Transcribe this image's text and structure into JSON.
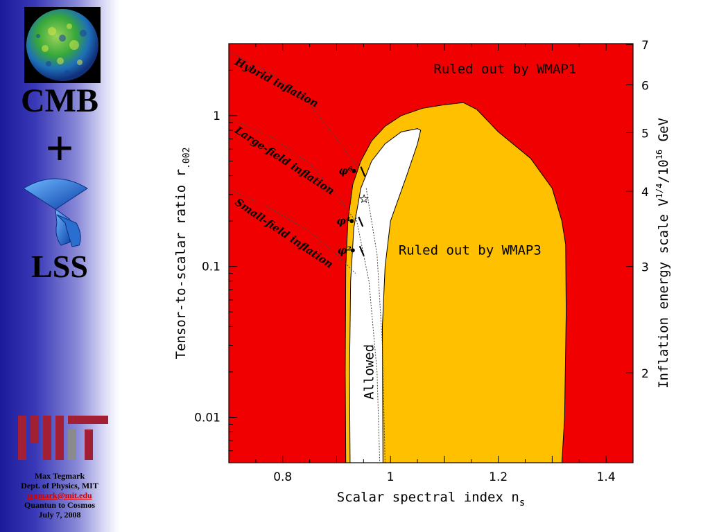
{
  "sidebar": {
    "title_top": "CMB",
    "plus": "+",
    "title_bottom": "LSS",
    "author": {
      "name": "Max Tegmark",
      "dept": "Dept. of Physics, MIT",
      "email": "tegmark@mit.edu",
      "event": "Quantun to Cosmos",
      "date": "July 7, 2008"
    },
    "colors": {
      "accent_dark": "#1a1a9a",
      "mit_red": "#a31f34",
      "mit_gray": "#8a8b8c"
    }
  },
  "chart_data": {
    "type": "area",
    "xlabel": "Scalar spectral index n",
    "xlabel_sub": "s",
    "ylabel": "Tensor-to-scalar ratio r",
    "ylabel_sub": ".002",
    "y2label_main": "Inflation energy scale V",
    "y2label_sup1": "1/4",
    "y2label_mid": "/10",
    "y2label_sup2": "16",
    "y2label_end": " GeV",
    "xlim": [
      0.7,
      1.45
    ],
    "ylim": [
      0.005,
      3.0
    ],
    "yscale": "log",
    "xticks": [
      0.8,
      1.0,
      1.2,
      1.4
    ],
    "xtick_labels": [
      "0.8",
      "1",
      "1.2",
      "1.4"
    ],
    "yticks": [
      0.01,
      0.1,
      1
    ],
    "ytick_labels": [
      "0.01",
      "0.1",
      "1"
    ],
    "y2ticks": [
      2,
      3,
      4,
      5,
      6,
      7
    ],
    "y2tick_labels": [
      "2",
      "3",
      "4",
      "5",
      "6",
      "7"
    ],
    "colors": {
      "ruled_wmap1": "#f00000",
      "ruled_wmap3": "#ffc000",
      "allowed": "#ffffff"
    },
    "regions": [
      {
        "name": "Ruled out by WMAP1",
        "label": "Ruled out by WMAP1",
        "label_at": [
          1.08,
          1.9
        ]
      },
      {
        "name": "Ruled out by WMAP3",
        "label": "Ruled out by WMAP3",
        "label_at": [
          1.015,
          0.12
        ]
      },
      {
        "name": "Allowed",
        "label": "Allowed",
        "label_at": [
          0.968,
          0.02
        ]
      }
    ],
    "wmap3_boundary": [
      [
        0.917,
        0.005
      ],
      [
        0.916,
        0.02
      ],
      [
        0.917,
        0.1
      ],
      [
        0.921,
        0.2
      ],
      [
        0.93,
        0.35
      ],
      [
        0.945,
        0.5
      ],
      [
        0.965,
        0.68
      ],
      [
        0.99,
        0.85
      ],
      [
        1.02,
        1.0
      ],
      [
        1.06,
        1.12
      ],
      [
        1.1,
        1.18
      ],
      [
        1.135,
        1.22
      ],
      [
        1.16,
        1.1
      ],
      [
        1.2,
        0.78
      ],
      [
        1.26,
        0.52
      ],
      [
        1.3,
        0.33
      ],
      [
        1.318,
        0.2
      ],
      [
        1.325,
        0.14
      ],
      [
        1.326,
        0.05
      ],
      [
        1.323,
        0.01
      ],
      [
        1.318,
        0.005
      ]
    ],
    "allowed_boundary": [
      [
        0.925,
        0.005
      ],
      [
        0.924,
        0.02
      ],
      [
        0.926,
        0.08
      ],
      [
        0.932,
        0.18
      ],
      [
        0.945,
        0.33
      ],
      [
        0.965,
        0.5
      ],
      [
        0.99,
        0.65
      ],
      [
        1.02,
        0.78
      ],
      [
        1.05,
        0.82
      ],
      [
        1.056,
        0.8
      ],
      [
        1.05,
        0.65
      ],
      [
        1.03,
        0.4
      ],
      [
        1.0,
        0.2
      ],
      [
        0.99,
        0.1
      ],
      [
        0.985,
        0.04
      ],
      [
        0.986,
        0.005
      ]
    ],
    "model_curves": [
      {
        "name": "Hybrid inflation",
        "label": "Hybrid inflation",
        "label_start": [
          0.71,
          2.2
        ],
        "label_angle": 28
      },
      {
        "name": "Large-field inflation",
        "label": "Large-field inflation",
        "label_start": [
          0.71,
          0.78
        ],
        "label_angle": 33
      },
      {
        "name": "Small-field inflation",
        "label": "Small-field inflation",
        "label_start": [
          0.71,
          0.26
        ],
        "label_angle": 34
      }
    ],
    "points": [
      {
        "label": "φ⁶",
        "x": 0.932,
        "y": 0.43
      },
      {
        "label": "φ⁴",
        "x": 0.928,
        "y": 0.2
      },
      {
        "label": "φ²",
        "x": 0.93,
        "y": 0.128
      }
    ],
    "star": {
      "x": 0.951,
      "y": 0.28
    }
  }
}
